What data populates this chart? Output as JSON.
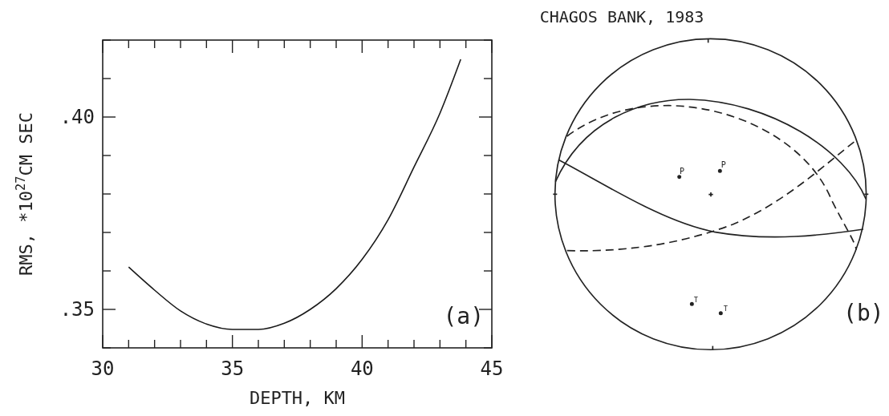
{
  "chart_data": [
    {
      "type": "line",
      "xlabel": "DEPTH, KM",
      "ylabel": "RMS, *10$^{27}$CM SEC",
      "annotations": [
        "(a)"
      ],
      "x": [
        31,
        32,
        33,
        34,
        35,
        36,
        37,
        38,
        39,
        40,
        41,
        42,
        43,
        43.8
      ],
      "series": [
        {
          "color": "#1a1a1a",
          "values": [
            0.361,
            0.355,
            0.3496,
            0.3462,
            0.3448,
            0.3448,
            0.3464,
            0.35,
            0.3554,
            0.363,
            0.3733,
            0.387,
            0.401,
            0.415
          ]
        }
      ],
      "xlim": [
        30,
        45
      ],
      "ylim": [
        0.34,
        0.42
      ],
      "xticks": [
        30,
        {
          "value": 31,
          "label": null
        },
        {
          "value": 32,
          "label": null
        },
        {
          "value": 33,
          "label": null
        },
        {
          "value": 34,
          "label": null
        },
        35,
        {
          "value": 36,
          "label": null
        },
        {
          "value": 37,
          "label": null
        },
        {
          "value": 38,
          "label": null
        },
        {
          "value": 39,
          "label": null
        },
        40,
        {
          "value": 41,
          "label": null
        },
        {
          "value": 42,
          "label": null
        },
        {
          "value": 43,
          "label": null
        },
        {
          "value": 44,
          "label": null
        },
        45
      ],
      "yticks": [
        {
          "value": 0.34,
          "label": null
        },
        {
          "value": 0.35,
          "label": ".35"
        },
        {
          "value": 0.36,
          "label": null
        },
        {
          "value": 0.37,
          "label": null
        },
        {
          "value": 0.38,
          "label": null
        },
        {
          "value": 0.39,
          "label": null
        },
        {
          "value": 0.4,
          "label": ".40"
        },
        {
          "value": 0.41,
          "label": null
        },
        {
          "value": 0.42,
          "label": null
        }
      ],
      "grid": false,
      "line_style": "solid",
      "marker": "none"
    },
    {
      "type": "other",
      "title": "CHAGOS BANK, 1983",
      "annotations": [
        "(b)",
        "P",
        "P",
        "T",
        "T"
      ]
    }
  ]
}
